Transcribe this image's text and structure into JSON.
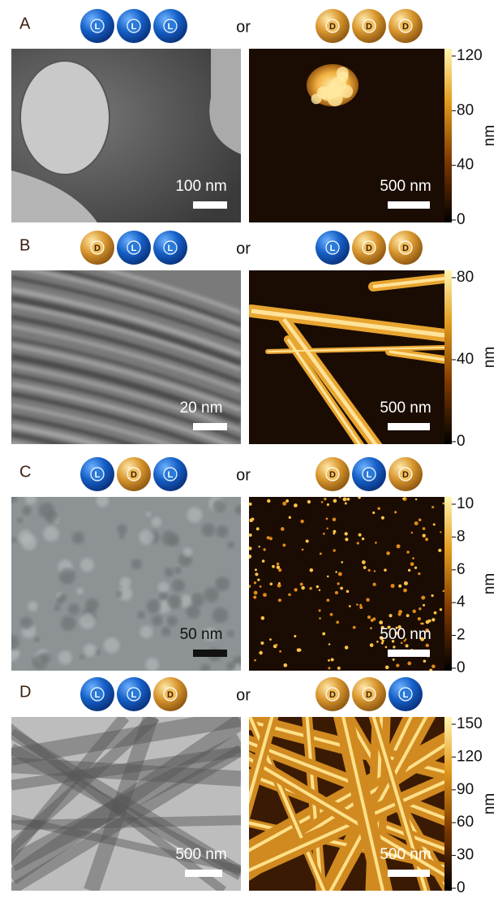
{
  "panels": [
    {
      "label": "A",
      "left_beads": [
        "L",
        "L",
        "L"
      ],
      "or": "or",
      "right_beads": [
        "D",
        "D",
        "D"
      ],
      "tem_scale": "100 nm",
      "afm_scale": "500 nm",
      "colorbar_ticks": [
        0,
        40,
        80,
        120
      ],
      "colorbar_unit": "nm"
    },
    {
      "label": "B",
      "left_beads": [
        "D",
        "L",
        "L"
      ],
      "or": "or",
      "right_beads": [
        "L",
        "D",
        "D"
      ],
      "tem_scale": "20 nm",
      "afm_scale": "500 nm",
      "colorbar_ticks": [
        0,
        40,
        80
      ],
      "colorbar_unit": "nm"
    },
    {
      "label": "C",
      "left_beads": [
        "L",
        "D",
        "L"
      ],
      "or": "or",
      "right_beads": [
        "D",
        "L",
        "D"
      ],
      "tem_scale": "50 nm",
      "afm_scale": "500 nm",
      "colorbar_ticks": [
        0,
        2,
        4,
        6,
        8,
        10
      ],
      "colorbar_unit": "nm"
    },
    {
      "label": "D",
      "left_beads": [
        "L",
        "L",
        "D"
      ],
      "or": "or",
      "right_beads": [
        "D",
        "D",
        "L"
      ],
      "tem_scale": "500 nm",
      "afm_scale": "500 nm",
      "colorbar_ticks": [
        0,
        30,
        60,
        90,
        120,
        150
      ],
      "colorbar_unit": "nm"
    }
  ]
}
